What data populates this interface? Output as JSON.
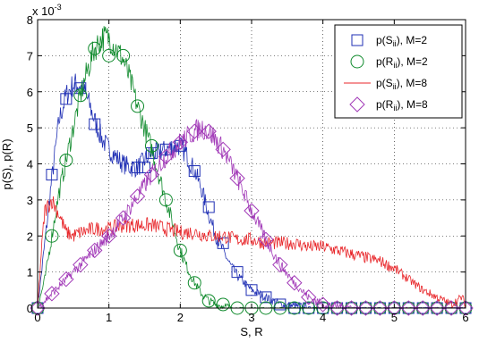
{
  "chart_data": {
    "type": "line",
    "xlabel": "S, R",
    "ylabel": "p(S), p(R)",
    "xlim": [
      0,
      6
    ],
    "ylim": [
      0,
      0.008
    ],
    "y_exponent_label": "x 10",
    "y_exponent_power": "-3",
    "x_ticks": [
      "0",
      "1",
      "2",
      "3",
      "4",
      "5",
      "6"
    ],
    "y_ticks": [
      "0",
      "1",
      "2",
      "3",
      "4",
      "5",
      "6",
      "7",
      "8"
    ],
    "grid": true,
    "legend_position": "top-right",
    "series": [
      {
        "legend_prefix": "p(S",
        "legend_sub": "ii",
        "legend_suffix": "), M=2",
        "color": "#1f2fb4",
        "marker": "square",
        "x": [
          0,
          0.1,
          0.2,
          0.3,
          0.4,
          0.5,
          0.6,
          0.7,
          0.8,
          0.9,
          1.0,
          1.1,
          1.2,
          1.3,
          1.4,
          1.5,
          1.6,
          1.7,
          1.8,
          1.9,
          2.0,
          2.1,
          2.2,
          2.3,
          2.4,
          2.5,
          2.6,
          2.7,
          2.8,
          2.9,
          3.0,
          3.1,
          3.2,
          3.3,
          3.4,
          3.6,
          3.8,
          4.0,
          4.5,
          5.0,
          5.5,
          6.0
        ],
        "y": [
          0.0,
          0.0018,
          0.0036,
          0.0052,
          0.0059,
          0.0062,
          0.0062,
          0.0058,
          0.0052,
          0.0047,
          0.0044,
          0.0042,
          0.004,
          0.0039,
          0.0039,
          0.0041,
          0.0043,
          0.0043,
          0.0044,
          0.0045,
          0.0045,
          0.0042,
          0.0038,
          0.0033,
          0.0026,
          0.002,
          0.0016,
          0.0012,
          0.0009,
          0.0007,
          0.0005,
          0.0004,
          0.0003,
          0.0002,
          0.0001,
          5e-05,
          2e-05,
          0.0,
          0.0,
          0.0,
          0.0,
          0.0
        ],
        "marker_x": [
          0,
          0.2,
          0.4,
          0.6,
          0.8,
          1.4,
          1.5,
          1.6,
          1.8,
          2.0,
          2.2,
          2.4,
          2.6,
          2.8,
          3.0,
          3.2,
          3.4,
          3.6,
          3.8,
          4.0,
          4.2,
          4.4,
          4.6,
          4.8,
          5.0,
          5.2,
          5.4,
          5.6,
          5.8,
          6.0
        ],
        "marker_y": [
          0.0,
          0.0037,
          0.0058,
          0.0061,
          0.0051,
          0.0039,
          0.0039,
          0.0043,
          0.0044,
          0.0045,
          0.0038,
          0.0028,
          0.0018,
          0.001,
          0.0005,
          0.0003,
          0.0001,
          0.0,
          0.0,
          0.0,
          0.0,
          0.0,
          0.0,
          0.0,
          0.0,
          0.0,
          0.0,
          0.0,
          0.0,
          0.0
        ]
      },
      {
        "legend_prefix": "p(R",
        "legend_sub": "ii",
        "legend_suffix": "), M=2",
        "color": "#0f8a2c",
        "marker": "circle",
        "x": [
          0,
          0.1,
          0.2,
          0.3,
          0.4,
          0.5,
          0.6,
          0.7,
          0.8,
          0.9,
          1.0,
          1.1,
          1.2,
          1.3,
          1.4,
          1.5,
          1.6,
          1.7,
          1.8,
          1.9,
          2.0,
          2.1,
          2.2,
          2.3,
          2.4,
          2.5,
          2.6,
          2.7,
          2.8,
          3.0,
          3.2,
          3.5,
          4.0,
          5.0,
          6.0
        ],
        "y": [
          0.0,
          0.0008,
          0.002,
          0.0032,
          0.0041,
          0.005,
          0.0059,
          0.0066,
          0.0072,
          0.0075,
          0.0075,
          0.0072,
          0.0069,
          0.0063,
          0.0056,
          0.005,
          0.0044,
          0.0037,
          0.003,
          0.0023,
          0.0016,
          0.0011,
          0.0007,
          0.0004,
          0.0002,
          0.0001,
          5e-05,
          2e-05,
          0.0,
          0.0,
          0.0,
          0.0,
          0.0,
          0.0,
          0.0
        ],
        "marker_x": [
          0,
          0.2,
          0.4,
          0.6,
          0.8,
          1.0,
          1.2,
          1.4,
          1.6,
          1.8,
          2.0,
          2.2,
          2.4,
          2.6,
          2.8,
          3.0,
          3.2,
          3.4,
          3.6,
          3.8,
          4.0,
          4.2,
          4.4,
          4.6,
          4.8,
          5.0,
          5.2,
          5.4,
          5.6,
          5.8,
          6.0
        ],
        "marker_y": [
          0.0,
          0.002,
          0.0041,
          0.0059,
          0.0072,
          0.007,
          0.007,
          0.0056,
          0.0045,
          0.003,
          0.0016,
          0.0007,
          0.0002,
          0.0001,
          0.0,
          0.0,
          0.0,
          0.0,
          0.0,
          0.0,
          0.0,
          0.0,
          0.0,
          0.0,
          0.0,
          0.0,
          0.0,
          0.0,
          0.0,
          0.0,
          0.0
        ]
      },
      {
        "legend_prefix": "p(S",
        "legend_sub": "ii",
        "legend_suffix": "), M=8",
        "color": "#e8262a",
        "marker": "none",
        "x": [
          0,
          0.05,
          0.1,
          0.2,
          0.3,
          0.4,
          0.5,
          0.6,
          0.8,
          1.0,
          1.2,
          1.4,
          1.6,
          1.8,
          2.0,
          2.2,
          2.4,
          2.6,
          2.8,
          3.0,
          3.2,
          3.4,
          3.6,
          3.8,
          4.0,
          4.2,
          4.4,
          4.6,
          4.8,
          5.0,
          5.2,
          5.4,
          5.6,
          5.8,
          5.95,
          6.0
        ],
        "y": [
          0.0,
          0.0015,
          0.0027,
          0.003,
          0.0026,
          0.0021,
          0.002,
          0.0021,
          0.0022,
          0.0022,
          0.0023,
          0.0023,
          0.0023,
          0.0022,
          0.0021,
          0.0021,
          0.002,
          0.002,
          0.0019,
          0.0019,
          0.0018,
          0.0018,
          0.0018,
          0.0017,
          0.0017,
          0.0016,
          0.0015,
          0.0014,
          0.0013,
          0.0011,
          0.0008,
          0.0005,
          0.0003,
          0.0001,
          0.0003,
          0.0001
        ]
      },
      {
        "legend_prefix": "p(R",
        "legend_sub": "ii",
        "legend_suffix": "), M=8",
        "color": "#a23ab8",
        "marker": "diamond",
        "x": [
          0,
          0.2,
          0.4,
          0.6,
          0.8,
          1.0,
          1.2,
          1.4,
          1.6,
          1.8,
          2.0,
          2.2,
          2.3,
          2.4,
          2.6,
          2.8,
          3.0,
          3.2,
          3.4,
          3.6,
          3.8,
          4.0,
          4.2,
          4.4,
          4.6,
          5.0,
          5.5,
          6.0
        ],
        "y": [
          0.0,
          0.0004,
          0.0008,
          0.0012,
          0.0016,
          0.002,
          0.0025,
          0.0031,
          0.0037,
          0.0042,
          0.0046,
          0.0049,
          0.005,
          0.0049,
          0.0044,
          0.0036,
          0.0027,
          0.0019,
          0.0012,
          0.0007,
          0.0003,
          0.0001,
          5e-05,
          2e-05,
          0.0,
          0.0,
          0.0,
          0.0
        ],
        "marker_x": [
          0,
          0.2,
          0.4,
          0.6,
          0.8,
          1.0,
          1.2,
          1.4,
          1.6,
          1.8,
          2.0,
          2.2,
          2.4,
          2.6,
          2.8,
          3.0,
          3.2,
          3.4,
          3.6,
          3.8,
          4.0,
          4.2,
          4.4,
          4.6,
          4.8,
          5.0,
          5.2,
          5.4,
          5.6,
          5.8,
          6.0
        ],
        "marker_y": [
          0.0,
          0.0004,
          0.0008,
          0.0012,
          0.0016,
          0.002,
          0.0025,
          0.0031,
          0.0037,
          0.0042,
          0.0046,
          0.0049,
          0.0049,
          0.0044,
          0.0036,
          0.0027,
          0.0019,
          0.0012,
          0.0007,
          0.0003,
          0.0001,
          0.0,
          0.0,
          0.0,
          0.0,
          0.0,
          0.0,
          0.0,
          0.0,
          0.0,
          0.0
        ]
      }
    ]
  }
}
